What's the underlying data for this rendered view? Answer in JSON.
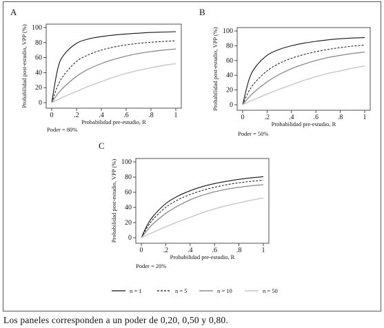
{
  "chart_data": [
    {
      "type": "line",
      "panel_label": "A",
      "power_label": "Poder = 80%",
      "power": 0.8,
      "xlabel": "Probabilidad pre-estudio, R",
      "ylabel": "Probabilidad post-estudio, VPP (%)",
      "xlim": [
        0,
        1
      ],
      "ylim": [
        0,
        100
      ],
      "x_ticks": [
        0,
        0.2,
        0.4,
        0.6,
        0.8,
        1
      ],
      "x_tick_labels": [
        "0",
        ".2",
        ".4",
        ".6",
        ".8",
        "1"
      ],
      "y_ticks": [
        0,
        20,
        40,
        60,
        80,
        100
      ],
      "y_tick_labels": [
        "0",
        "20",
        "40",
        "60",
        "80",
        "100"
      ],
      "x": [
        0,
        0.05,
        0.1,
        0.2,
        0.3,
        0.4,
        0.5,
        0.6,
        0.7,
        0.8,
        0.9,
        1
      ],
      "series": [
        {
          "name": "n = 1",
          "values": [
            0,
            46,
            64,
            79,
            85,
            88,
            90,
            91.5,
            92.5,
            93.5,
            94,
            94.5
          ]
        },
        {
          "name": "n = 5",
          "values": [
            0,
            23,
            37,
            55,
            64,
            70,
            74,
            77,
            79,
            80.5,
            81.5,
            82.5
          ]
        },
        {
          "name": "n = 10",
          "values": [
            0,
            12,
            21,
            35,
            45,
            52,
            57.5,
            62,
            65.5,
            68,
            70,
            71.5
          ]
        },
        {
          "name": "n = 50",
          "values": [
            0,
            4,
            8,
            15,
            22,
            28,
            34,
            39,
            43,
            46.5,
            49.5,
            52
          ]
        }
      ]
    },
    {
      "type": "line",
      "panel_label": "B",
      "power_label": "Poder = 50%",
      "power": 0.5,
      "xlabel": "Probabilidad pre-estudio, R",
      "ylabel": "Probabilidad post-estudio, VPP (%)",
      "xlim": [
        0,
        1
      ],
      "ylim": [
        0,
        100
      ],
      "x_ticks": [
        0,
        0.2,
        0.4,
        0.6,
        0.8,
        1
      ],
      "x_tick_labels": [
        "0",
        ".2",
        ".4",
        ".6",
        ".8",
        "1"
      ],
      "y_ticks": [
        0,
        20,
        40,
        60,
        80,
        100
      ],
      "y_tick_labels": [
        "0",
        "20",
        "40",
        "60",
        "80",
        "100"
      ],
      "x": [
        0,
        0.05,
        0.1,
        0.2,
        0.3,
        0.4,
        0.5,
        0.6,
        0.7,
        0.8,
        0.9,
        1
      ],
      "series": [
        {
          "name": "n = 1",
          "values": [
            0,
            33,
            50,
            67,
            75,
            80,
            83.5,
            86,
            88,
            89.5,
            90.5,
            91
          ]
        },
        {
          "name": "n = 5",
          "values": [
            0,
            18,
            30,
            46,
            56,
            63,
            68,
            72,
            75,
            77.5,
            79.5,
            81
          ]
        },
        {
          "name": "n = 10",
          "values": [
            0,
            10,
            18,
            31,
            41,
            49,
            55,
            60,
            64,
            67,
            69.5,
            71.5
          ]
        },
        {
          "name": "n = 50",
          "values": [
            0,
            4,
            7.5,
            14.5,
            21,
            27,
            33,
            38,
            42.5,
            46,
            49.5,
            52.5
          ]
        }
      ]
    },
    {
      "type": "line",
      "panel_label": "C",
      "power_label": "Poder = 20%",
      "power": 0.2,
      "xlabel": "Probabilidad pre-estudio, R",
      "ylabel": "Probabilidad post-estudio, VPP (%)",
      "xlim": [
        0,
        1
      ],
      "ylim": [
        0,
        100
      ],
      "x_ticks": [
        0,
        0.2,
        0.4,
        0.6,
        0.8,
        1
      ],
      "x_tick_labels": [
        "0",
        ".2",
        ".4",
        ".6",
        ".8",
        "1"
      ],
      "y_ticks": [
        0,
        20,
        40,
        60,
        80,
        100
      ],
      "y_tick_labels": [
        "0",
        "20",
        "40",
        "60",
        "80",
        "100"
      ],
      "x": [
        0,
        0.05,
        0.1,
        0.2,
        0.3,
        0.4,
        0.5,
        0.6,
        0.7,
        0.8,
        0.9,
        1
      ],
      "series": [
        {
          "name": "n = 1",
          "values": [
            0,
            17,
            29,
            45,
            55,
            62,
            67.5,
            71.5,
            74.5,
            77,
            79,
            80.5
          ]
        },
        {
          "name": "n = 5",
          "values": [
            0,
            14,
            25,
            40,
            50,
            57,
            62.5,
            66.5,
            70,
            72.5,
            74.5,
            76
          ]
        },
        {
          "name": "n = 10",
          "values": [
            0,
            10,
            19,
            32,
            42,
            50,
            56,
            60.5,
            64,
            66.5,
            68.5,
            70
          ]
        },
        {
          "name": "n = 50",
          "values": [
            0,
            4,
            7.5,
            14.5,
            21,
            27,
            33,
            38,
            42.5,
            46,
            49.5,
            52.5
          ]
        }
      ]
    }
  ],
  "legend": [
    {
      "label": "n = 1",
      "color": "#111111",
      "dash": "solid"
    },
    {
      "label": "n = 5",
      "color": "#111111",
      "dash": "dashed"
    },
    {
      "label": "n = 10",
      "color": "#8a8a8a",
      "dash": "solid"
    },
    {
      "label": "n = 50",
      "color": "#c6c6c6",
      "dash": "solid"
    }
  ],
  "caption": "Los paneles corresponden a un poder de 0,20, 0,50 y 0,80."
}
